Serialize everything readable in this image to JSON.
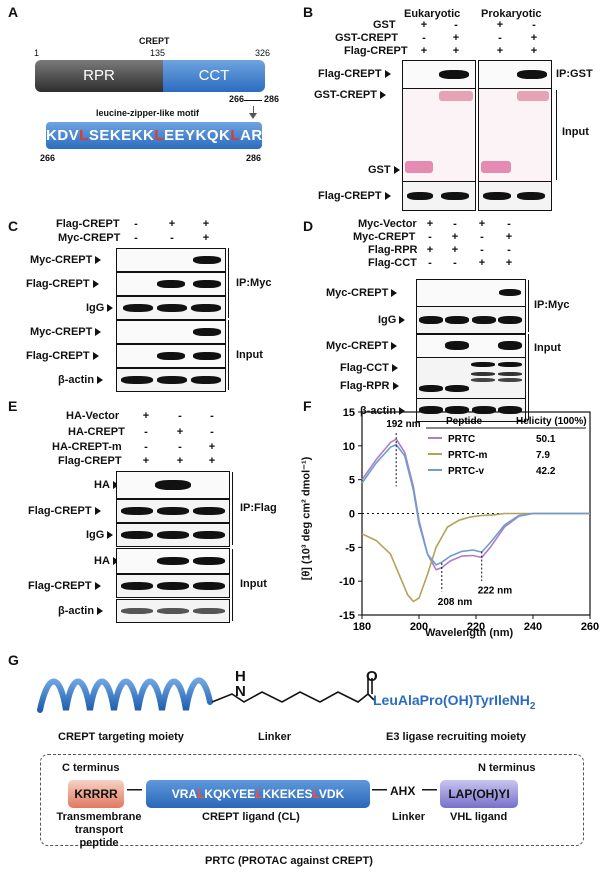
{
  "panels": {
    "A": "A",
    "B": "B",
    "C": "C",
    "D": "D",
    "E": "E",
    "F": "F",
    "G": "G"
  },
  "A": {
    "title": "CREPT",
    "pos_start": "1",
    "pos_mid": "135",
    "pos_end": "326",
    "rpr": "RPR",
    "cct": "CCT",
    "sub_start": "266",
    "sub_end": "286",
    "motif": "leucine-zipper-like motif",
    "seq_parts": [
      "KDV",
      "L",
      "SEKEKK",
      "L",
      "EEYKQK",
      "L",
      "ARV"
    ],
    "seq_start": "266",
    "seq_end": "286"
  },
  "B": {
    "eukaryotic": "Eukaryotic",
    "prokaryotic": "Prokaryotic",
    "rows": [
      {
        "label": "GST",
        "marks": [
          "+",
          "-",
          "+",
          "-"
        ]
      },
      {
        "label": "GST-CREPT",
        "marks": [
          "-",
          "+",
          "-",
          "+"
        ]
      },
      {
        "label": "Flag-CREPT",
        "marks": [
          "+",
          "+",
          "+",
          "+"
        ]
      }
    ],
    "blot1": "Flag-CREPT",
    "blot2a": "GST-CREPT",
    "blot2b": "GST",
    "blot3": "Flag-CREPT",
    "ip": "IP:GST",
    "input": "Input"
  },
  "C": {
    "rows": [
      {
        "label": "Flag-CREPT",
        "marks": [
          "-",
          "+",
          "+"
        ]
      },
      {
        "label": "Myc-CREPT",
        "marks": [
          "-",
          "-",
          "+"
        ]
      }
    ],
    "blots": [
      "Myc-CREPT",
      "Flag-CREPT",
      "IgG",
      "Myc-CREPT",
      "Flag-CREPT",
      "β-actin"
    ],
    "ip": "IP:Myc",
    "input": "Input"
  },
  "D": {
    "rows": [
      {
        "label": "Myc-Vector",
        "marks": [
          "+",
          "-",
          "+",
          "-"
        ]
      },
      {
        "label": "Myc-CREPT",
        "marks": [
          "-",
          "+",
          "-",
          "+"
        ]
      },
      {
        "label": "Flag-RPR",
        "marks": [
          "+",
          "+",
          "-",
          "-"
        ]
      },
      {
        "label": "Flag-CCT",
        "marks": [
          "-",
          "-",
          "+",
          "+"
        ]
      }
    ],
    "blots": [
      "Myc-CREPT",
      "IgG",
      "Myc-CREPT",
      "Flag-CCT",
      "Flag-RPR",
      "β-actin"
    ],
    "ip": "IP:Myc",
    "input": "Input"
  },
  "E": {
    "rows": [
      {
        "label": "HA-Vector",
        "marks": [
          "+",
          "-",
          "-"
        ]
      },
      {
        "label": "HA-CREPT",
        "marks": [
          "-",
          "+",
          "-"
        ]
      },
      {
        "label": "HA-CREPT-m",
        "marks": [
          "-",
          "-",
          "+"
        ]
      },
      {
        "label": "Flag-CREPT",
        "marks": [
          "+",
          "+",
          "+"
        ]
      }
    ],
    "blots": [
      "HA",
      "Flag-CREPT",
      "IgG",
      "HA",
      "Flag-CREPT",
      "β-actin"
    ],
    "ip": "IP:Flag",
    "input": "Input"
  },
  "F": {
    "xlabel": "Wavelength (nm)",
    "ylabel": "[θ] (10³ deg cm² dmol⁻¹)",
    "ann1": "192 nm",
    "ann2": "208 nm",
    "ann3": "222 nm",
    "table_head": [
      "Peptide",
      "Helicity (100%)"
    ],
    "table_rows": [
      [
        "PRTC",
        "50.1"
      ],
      [
        "PRTC-m",
        "7.9"
      ],
      [
        "PRTC-v",
        "42.2"
      ]
    ],
    "series_colors": [
      "#b07cc6",
      "#b5a15a",
      "#6a9fd0"
    ]
  },
  "chart_data": {
    "type": "line",
    "xlabel": "Wavelength (nm)",
    "ylabel": "[θ] (10³ deg cm² dmol⁻¹)",
    "xlim": [
      180,
      260
    ],
    "ylim": [
      -15,
      15
    ],
    "xticks": [
      "180",
      "200",
      "220",
      "240",
      "260"
    ],
    "yticks": [
      "15",
      "10",
      "5",
      "0",
      "-5",
      "-10",
      "-15"
    ],
    "series": [
      {
        "name": "PRTC",
        "color": "#b07cc6",
        "x": [
          180,
          185,
          190,
          192,
          195,
          198,
          200,
          203,
          206,
          208,
          211,
          215,
          219,
          222,
          225,
          230,
          235,
          240,
          250,
          260
        ],
        "y": [
          5,
          8,
          10.5,
          11,
          9,
          4,
          -1,
          -6,
          -8.3,
          -8.0,
          -7,
          -6.3,
          -6.2,
          -6.5,
          -5,
          -2,
          -0.4,
          0,
          0,
          0
        ]
      },
      {
        "name": "PRTC-m",
        "color": "#b5a15a",
        "x": [
          180,
          185,
          190,
          193,
          196,
          198,
          200,
          203,
          206,
          210,
          214,
          218,
          222,
          226,
          230,
          236,
          240,
          250,
          260
        ],
        "y": [
          -3,
          -4,
          -6,
          -9,
          -12,
          -13,
          -12.5,
          -9,
          -5,
          -2,
          -1,
          -0.5,
          -0.3,
          -0.2,
          0,
          0,
          0,
          0,
          0
        ]
      },
      {
        "name": "PRTC-v",
        "color": "#6a9fd0",
        "x": [
          180,
          185,
          190,
          192,
          195,
          198,
          200,
          203,
          206,
          208,
          211,
          215,
          219,
          222,
          225,
          230,
          235,
          240,
          250,
          260
        ],
        "y": [
          4.5,
          7.5,
          9.8,
          10.2,
          8.5,
          3.5,
          -1.5,
          -6,
          -7.6,
          -7.2,
          -6.3,
          -5.6,
          -5.4,
          -5.7,
          -4.3,
          -1.7,
          -0.3,
          0,
          0,
          0
        ]
      }
    ],
    "annotations": [
      "192 nm",
      "208 nm",
      "222 nm"
    ]
  },
  "G": {
    "moiety1": "CREPT targeting moiety",
    "linker": "Linker",
    "moiety3": "E3 ligase recruiting moiety",
    "ligand_formula": "LeuAlaPro(OH)TyrIleNH",
    "ligand_sub": "2",
    "atom_n": "N",
    "atom_h": "H",
    "atom_o": "O",
    "c_term": "C terminus",
    "n_term": "N terminus",
    "kr": "KRRRR",
    "cl_parts": [
      "VRA",
      "L",
      "KQKYEE",
      "L",
      "KKEKES",
      "L",
      "VDK"
    ],
    "ahx": "AHX",
    "vhl": "LAP(OH)YI",
    "lab1": "Transmembrane transport peptide",
    "lab2": "CREPT ligand (CL)",
    "lab3": "Linker",
    "lab4": "VHL ligand",
    "caption": "PRTC (PROTAC against CREPT)"
  }
}
